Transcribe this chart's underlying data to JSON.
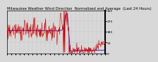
{
  "title": "Milwaukee Weather Wind Direction  Normalized and Average  (Last 24 Hours)",
  "bg_color": "#d8d8d8",
  "plot_bg": "#d8d8d8",
  "line_color_raw": "#cc0000",
  "line_color_avg": "#0000cc",
  "ylim": [
    0,
    360
  ],
  "ytick_values": [
    0,
    90,
    180,
    270,
    360
  ],
  "num_points": 288,
  "title_fontsize": 3.8,
  "tick_fontsize": 3.2,
  "grid_color": "#aaaaaa"
}
